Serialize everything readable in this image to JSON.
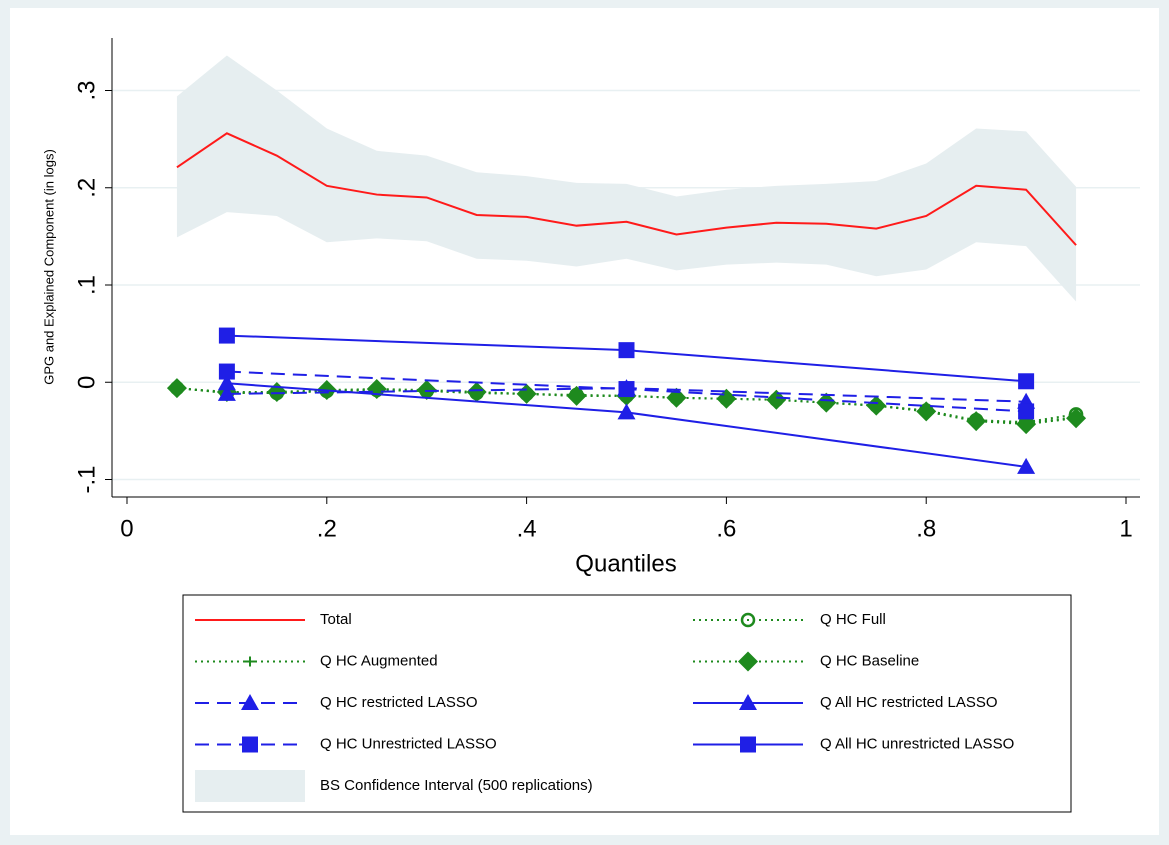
{
  "chart_data": {
    "type": "line",
    "xlabel": "Quantiles",
    "ylabel": "GPG and Explained Component (in logs)",
    "xlim": [
      -0.015,
      1.014
    ],
    "ylim": [
      -0.118,
      0.354
    ],
    "xticks": [
      0,
      {
        "value": 0.2,
        "label": ".2"
      },
      {
        "value": 0.4,
        "label": ".4"
      },
      {
        "value": 0.6,
        "label": ".6"
      },
      {
        "value": 0.8,
        "label": ".8"
      },
      1
    ],
    "yticks": [
      {
        "value": -0.1,
        "label": "-.1"
      },
      0,
      {
        "value": 0.1,
        "label": ".1"
      },
      {
        "value": 0.2,
        "label": ".2"
      },
      {
        "value": 0.3,
        "label": ".3"
      }
    ],
    "grid": true,
    "legend": "bottom",
    "series": [
      {
        "name": "Total",
        "color": "#ff1a1a",
        "line": "solid",
        "marker": "none",
        "x": [
          0.05,
          0.1,
          0.15,
          0.2,
          0.25,
          0.3,
          0.35,
          0.4,
          0.45,
          0.5,
          0.55,
          0.6,
          0.65,
          0.7,
          0.75,
          0.8,
          0.85,
          0.9,
          0.95
        ],
        "values": [
          0.221,
          0.256,
          0.233,
          0.202,
          0.193,
          0.19,
          0.172,
          0.17,
          0.161,
          0.165,
          0.152,
          0.159,
          0.164,
          0.163,
          0.158,
          0.171,
          0.202,
          0.198,
          0.141
        ]
      },
      {
        "name": "Q HC Full",
        "color": "#1e8a1e",
        "line": "dot",
        "marker": "circle",
        "x": [
          0.05,
          0.1,
          0.15,
          0.2,
          0.25,
          0.3,
          0.35,
          0.4,
          0.45,
          0.5,
          0.55,
          0.6,
          0.65,
          0.7,
          0.75,
          0.8,
          0.85,
          0.9,
          0.95
        ],
        "values": [
          -0.006,
          -0.011,
          -0.011,
          -0.009,
          -0.008,
          -0.009,
          -0.011,
          -0.012,
          -0.013,
          -0.014,
          -0.016,
          -0.017,
          -0.018,
          -0.021,
          -0.024,
          -0.029,
          -0.039,
          -0.041,
          -0.033
        ]
      },
      {
        "name": "Q HC Augmented",
        "color": "#1e8a1e",
        "line": "dot",
        "marker": "plus",
        "x": [
          0.05,
          0.1,
          0.15,
          0.2,
          0.25,
          0.3,
          0.35,
          0.4,
          0.45,
          0.5,
          0.55,
          0.6,
          0.65,
          0.7,
          0.75,
          0.8,
          0.85,
          0.9,
          0.95
        ],
        "values": [
          -0.006,
          -0.011,
          -0.011,
          -0.009,
          -0.008,
          -0.009,
          -0.011,
          -0.012,
          -0.014,
          -0.014,
          -0.016,
          -0.017,
          -0.018,
          -0.021,
          -0.024,
          -0.03,
          -0.04,
          -0.042,
          -0.036
        ]
      },
      {
        "name": "Q HC Baseline",
        "color": "#1e8a1e",
        "line": "dot",
        "marker": "diamond",
        "x": [
          0.05,
          0.1,
          0.15,
          0.2,
          0.25,
          0.3,
          0.35,
          0.4,
          0.45,
          0.5,
          0.55,
          0.6,
          0.65,
          0.7,
          0.75,
          0.8,
          0.85,
          0.9,
          0.95
        ],
        "values": [
          -0.006,
          -0.01,
          -0.01,
          -0.008,
          -0.007,
          -0.008,
          -0.01,
          -0.012,
          -0.014,
          -0.014,
          -0.016,
          -0.017,
          -0.018,
          -0.021,
          -0.024,
          -0.03,
          -0.04,
          -0.043,
          -0.037
        ]
      },
      {
        "name": "Q HC restricted LASSO",
        "color": "#1f1fe6",
        "line": "dash",
        "marker": "triangle",
        "x": [
          0.1,
          0.5,
          0.9
        ],
        "values": [
          -0.012,
          -0.006,
          -0.02
        ]
      },
      {
        "name": "Q All HC restricted LASSO",
        "color": "#1f1fe6",
        "line": "solid",
        "marker": "triangle",
        "x": [
          0.1,
          0.5,
          0.9
        ],
        "values": [
          -0.001,
          -0.031,
          -0.087
        ]
      },
      {
        "name": "Q HC Unrestricted LASSO",
        "color": "#1f1fe6",
        "line": "dash",
        "marker": "square",
        "x": [
          0.1,
          0.5,
          0.9
        ],
        "values": [
          0.011,
          -0.007,
          -0.03
        ]
      },
      {
        "name": "Q All HC unrestricted LASSO",
        "color": "#1f1fe6",
        "line": "solid",
        "marker": "square",
        "x": [
          0.1,
          0.5,
          0.9
        ],
        "values": [
          0.048,
          0.033,
          0.001
        ]
      },
      {
        "name": "BS Confidence Interval (500 replications)",
        "type": "area",
        "color": "#e6eef0",
        "x": [
          0.05,
          0.1,
          0.15,
          0.2,
          0.25,
          0.3,
          0.35,
          0.4,
          0.45,
          0.5,
          0.55,
          0.6,
          0.65,
          0.7,
          0.75,
          0.8,
          0.85,
          0.9,
          0.95
        ],
        "upper": [
          0.294,
          0.336,
          0.3,
          0.261,
          0.238,
          0.233,
          0.216,
          0.212,
          0.205,
          0.204,
          0.191,
          0.198,
          0.202,
          0.204,
          0.207,
          0.225,
          0.261,
          0.258,
          0.201
        ],
        "lower": [
          0.149,
          0.175,
          0.171,
          0.144,
          0.148,
          0.145,
          0.127,
          0.125,
          0.119,
          0.127,
          0.115,
          0.121,
          0.123,
          0.121,
          0.109,
          0.116,
          0.144,
          0.14,
          0.083
        ]
      }
    ]
  }
}
